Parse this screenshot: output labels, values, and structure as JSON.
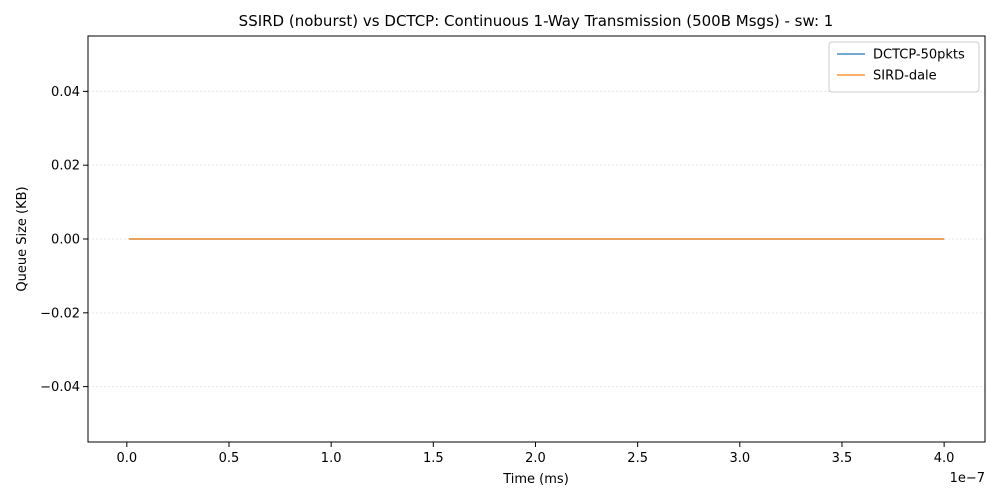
{
  "chart_data": {
    "type": "line",
    "title": "SSIRD (noburst) vs DCTCP: Continuous 1-Way Transmission (500B Msgs) - sw: 1",
    "xlabel": "Time (ms)",
    "ylabel": "Queue Size (KB)",
    "x_offset_text": "1e−7",
    "xlim": [
      -0.19,
      4.2
    ],
    "ylim": [
      -0.055,
      0.055
    ],
    "x_ticks": [
      0.0,
      0.5,
      1.0,
      1.5,
      2.0,
      2.5,
      3.0,
      3.5,
      4.0
    ],
    "x_tick_labels": [
      "0.0",
      "0.5",
      "1.0",
      "1.5",
      "2.0",
      "2.5",
      "3.0",
      "3.5",
      "4.0"
    ],
    "y_ticks": [
      -0.04,
      -0.02,
      0.0,
      0.02,
      0.04
    ],
    "y_tick_labels": [
      "−0.04",
      "−0.02",
      "0.00",
      "0.02",
      "0.04"
    ],
    "grid": "horizontal",
    "legend_position": "top-right",
    "series": [
      {
        "name": "DCTCP-50pkts",
        "color": "#1f77b4",
        "x": [
          0.01,
          4.0
        ],
        "y": [
          0.0,
          0.0
        ]
      },
      {
        "name": "SIRD-dale",
        "color": "#ff7f0e",
        "x": [
          0.01,
          4.0
        ],
        "y": [
          0.0,
          0.0
        ]
      }
    ]
  }
}
